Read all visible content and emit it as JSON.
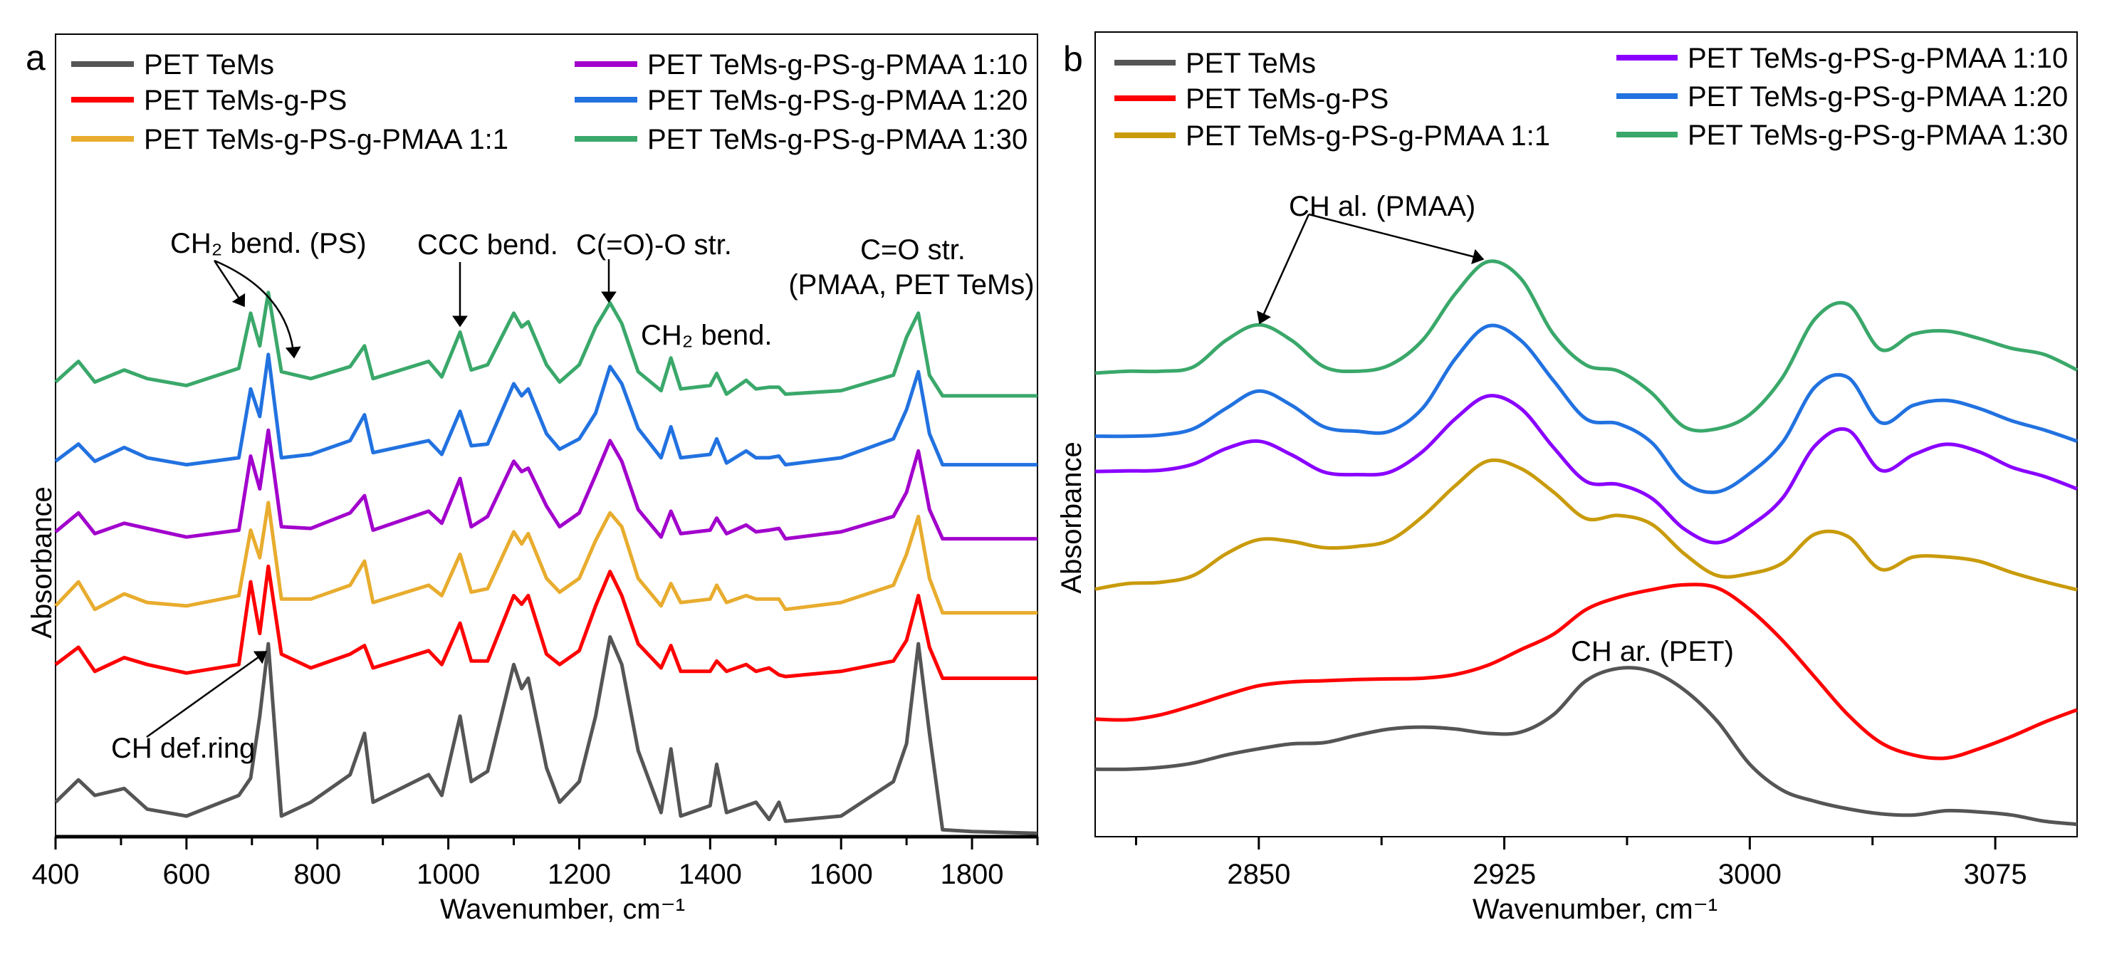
{
  "chart_data": [
    {
      "type": "line",
      "panel_label": "a",
      "xlabel": "Wavenumber, cm⁻¹",
      "ylabel": "Absorbance",
      "xlim": [
        400,
        1900
      ],
      "ylim": [
        0,
        23.3
      ],
      "xticks": [
        400,
        600,
        800,
        1000,
        1200,
        1400,
        1600,
        1800
      ],
      "minor_xticks": [
        500,
        700,
        900,
        1100,
        1300,
        1500,
        1700,
        1900
      ],
      "yticks": [],
      "grid": false,
      "legend": "top",
      "x": [
        400,
        435,
        460,
        505,
        540,
        600,
        680,
        698,
        712,
        725,
        745,
        790,
        850,
        872,
        885,
        970,
        990,
        1018,
        1035,
        1060,
        1100,
        1112,
        1122,
        1150,
        1170,
        1200,
        1225,
        1247,
        1265,
        1290,
        1325,
        1340,
        1355,
        1400,
        1410,
        1425,
        1455,
        1470,
        1490,
        1505,
        1515,
        1600,
        1680,
        1700,
        1718,
        1735,
        1755,
        1800,
        1900
      ],
      "series": [
        {
          "name": "PET TeMs",
          "color": "#555555",
          "values": [
            1.0,
            1.65,
            1.2,
            1.4,
            0.8,
            0.6,
            1.2,
            1.7,
            3.5,
            5.6,
            0.6,
            1.0,
            1.8,
            3.0,
            1.0,
            1.8,
            1.2,
            3.5,
            1.6,
            1.9,
            5.0,
            4.3,
            4.6,
            2.0,
            1.0,
            1.6,
            3.5,
            5.8,
            5.0,
            2.5,
            0.7,
            2.55,
            0.6,
            0.9,
            2.1,
            0.7,
            0.9,
            1.0,
            0.5,
            1.0,
            0.45,
            0.6,
            1.6,
            2.7,
            5.6,
            3.0,
            0.2,
            0.15,
            0.1
          ]
        },
        {
          "name": "PET TeMs-g-PS",
          "color": "#ff0000",
          "values": [
            5.0,
            5.5,
            4.8,
            5.2,
            5.0,
            4.75,
            5.0,
            7.4,
            5.9,
            7.85,
            5.3,
            4.9,
            5.3,
            5.55,
            4.9,
            5.4,
            5.0,
            6.2,
            5.1,
            5.1,
            7.0,
            6.75,
            7.0,
            5.3,
            5.0,
            5.4,
            6.7,
            7.7,
            7.0,
            5.6,
            4.9,
            5.55,
            4.8,
            4.8,
            5.1,
            4.8,
            5.0,
            4.8,
            4.9,
            4.7,
            4.65,
            4.8,
            5.1,
            5.7,
            7.0,
            5.5,
            4.6,
            4.6,
            4.6
          ]
        },
        {
          "name": "PET TeMs-g-PS-g-PMAA 1:1",
          "color": "#e8ac2e",
          "values": [
            6.7,
            7.4,
            6.6,
            7.05,
            6.8,
            6.7,
            7.0,
            8.9,
            8.1,
            9.7,
            6.9,
            6.9,
            7.3,
            8.0,
            6.8,
            7.3,
            7.0,
            8.2,
            7.1,
            7.2,
            8.85,
            8.5,
            8.8,
            7.5,
            7.1,
            7.5,
            8.6,
            9.4,
            9.0,
            7.5,
            6.7,
            7.35,
            6.8,
            6.9,
            7.3,
            6.8,
            7.0,
            6.9,
            6.9,
            6.9,
            6.6,
            6.8,
            7.3,
            8.2,
            9.3,
            7.5,
            6.5,
            6.5,
            6.5
          ]
        },
        {
          "name": "PET TeMs-g-PS-g-PMAA 1:10",
          "color": "#a200cc",
          "values": [
            8.85,
            9.4,
            8.8,
            9.1,
            8.95,
            8.7,
            8.9,
            11.05,
            10.1,
            11.8,
            9.0,
            8.95,
            9.4,
            9.9,
            8.9,
            9.45,
            9.1,
            10.4,
            9.0,
            9.3,
            10.9,
            10.6,
            10.7,
            9.6,
            9.0,
            9.4,
            10.5,
            11.5,
            10.9,
            9.5,
            8.7,
            9.45,
            8.8,
            8.9,
            9.25,
            8.8,
            9.05,
            8.85,
            8.9,
            8.95,
            8.65,
            8.85,
            9.3,
            10.0,
            11.2,
            9.5,
            8.65,
            8.65,
            8.65
          ]
        },
        {
          "name": "PET TeMs-g-PS-g-PMAA 1:20",
          "color": "#2272e0",
          "values": [
            10.9,
            11.4,
            10.9,
            11.3,
            11.0,
            10.8,
            11.0,
            13.0,
            12.2,
            14.0,
            11.0,
            11.1,
            11.5,
            12.25,
            11.15,
            11.5,
            11.1,
            12.35,
            11.35,
            11.4,
            13.15,
            12.8,
            13.0,
            11.7,
            11.25,
            11.55,
            12.3,
            13.65,
            13.15,
            11.85,
            11.0,
            11.9,
            11.0,
            11.1,
            11.55,
            10.85,
            11.2,
            11.0,
            11.0,
            11.05,
            10.8,
            11.0,
            11.55,
            12.4,
            13.5,
            11.7,
            10.8,
            10.8,
            10.8
          ]
        },
        {
          "name": "PET TeMs-g-PS-g-PMAA 1:30",
          "color": "#3aa86a",
          "values": [
            13.2,
            13.8,
            13.2,
            13.55,
            13.3,
            13.1,
            13.6,
            15.2,
            14.25,
            15.8,
            13.5,
            13.3,
            13.65,
            14.25,
            13.3,
            13.8,
            13.35,
            14.65,
            13.55,
            13.7,
            15.2,
            14.8,
            14.95,
            13.7,
            13.2,
            13.7,
            14.8,
            15.5,
            14.9,
            13.5,
            12.95,
            13.9,
            13.0,
            13.1,
            13.45,
            12.85,
            13.25,
            13.0,
            13.05,
            13.05,
            12.85,
            12.95,
            13.4,
            14.5,
            15.2,
            13.4,
            12.8,
            12.8,
            12.8
          ]
        }
      ],
      "annotations": [
        {
          "text": "CH₂ bend. (PS)"
        },
        {
          "text": "CCC bend."
        },
        {
          "text": "C(=O)-O str."
        },
        {
          "text": "CH₂ bend."
        },
        {
          "text": "C=O str."
        },
        {
          "text": "(PMAA, PET TeMs)"
        },
        {
          "text": "CH def.ring"
        }
      ]
    },
    {
      "type": "line",
      "panel_label": "b",
      "xlabel": "Wavenumber, cm⁻¹",
      "ylabel": "Absorbance",
      "xlim": [
        2800,
        3100
      ],
      "ylim": [
        0,
        13.0
      ],
      "xticks": [
        2850,
        2925,
        3000,
        3075
      ],
      "minor_xticks": [
        2812.5,
        2887.5,
        2962.5,
        3037.5
      ],
      "yticks": [],
      "grid": false,
      "legend": "top",
      "x": [
        2800,
        2810,
        2820,
        2830,
        2840,
        2850,
        2860,
        2870,
        2880,
        2890,
        2900,
        2910,
        2920,
        2930,
        2940,
        2950,
        2960,
        2970,
        2980,
        2990,
        3000,
        3010,
        3020,
        3030,
        3040,
        3050,
        3060,
        3070,
        3080,
        3090,
        3100
      ],
      "series": [
        {
          "name": "PET TeMs",
          "color": "#555555",
          "values": [
            1.09,
            1.09,
            1.12,
            1.19,
            1.32,
            1.42,
            1.5,
            1.52,
            1.64,
            1.74,
            1.77,
            1.74,
            1.67,
            1.69,
            1.97,
            2.52,
            2.72,
            2.67,
            2.37,
            1.87,
            1.17,
            0.75,
            0.57,
            0.45,
            0.37,
            0.35,
            0.42,
            0.4,
            0.35,
            0.25,
            0.2
          ]
        },
        {
          "name": "PET TeMs-g-PS",
          "color": "#ff0000",
          "values": [
            1.9,
            1.89,
            1.97,
            2.12,
            2.29,
            2.44,
            2.5,
            2.52,
            2.54,
            2.55,
            2.56,
            2.62,
            2.77,
            3.02,
            3.27,
            3.67,
            3.87,
            3.99,
            4.07,
            4.02,
            3.67,
            3.17,
            2.57,
            1.97,
            1.52,
            1.32,
            1.27,
            1.42,
            1.62,
            1.85,
            2.05
          ]
        },
        {
          "name": "PET TeMs-g-PS-g-PMAA 1:1",
          "color": "#c99b0c",
          "values": [
            4.0,
            4.09,
            4.11,
            4.22,
            4.57,
            4.8,
            4.77,
            4.67,
            4.69,
            4.79,
            5.17,
            5.67,
            6.07,
            5.95,
            5.57,
            5.14,
            5.19,
            5.05,
            4.57,
            4.22,
            4.25,
            4.42,
            4.89,
            4.85,
            4.32,
            4.52,
            4.52,
            4.45,
            4.27,
            4.12,
            3.99
          ]
        },
        {
          "name": "PET TeMs-g-PS-g-PMAA 1:10",
          "color": "#8a00ff",
          "values": [
            5.9,
            5.91,
            5.92,
            6.02,
            6.27,
            6.39,
            6.17,
            5.89,
            5.85,
            5.89,
            6.22,
            6.75,
            7.12,
            6.92,
            6.29,
            5.74,
            5.69,
            5.47,
            4.97,
            4.75,
            5.02,
            5.47,
            6.32,
            6.57,
            5.92,
            6.17,
            6.34,
            6.22,
            5.97,
            5.82,
            5.62
          ]
        },
        {
          "name": "PET TeMs-g-PS-g-PMAA 1:20",
          "color": "#2272e0",
          "values": [
            6.47,
            6.47,
            6.49,
            6.59,
            6.92,
            7.2,
            6.97,
            6.62,
            6.55,
            6.55,
            6.92,
            7.72,
            8.25,
            8.02,
            7.37,
            6.75,
            6.67,
            6.37,
            5.72,
            5.57,
            5.87,
            6.37,
            7.27,
            7.42,
            6.69,
            6.97,
            7.05,
            6.92,
            6.72,
            6.57,
            6.39
          ]
        },
        {
          "name": "PET TeMs-g-PS-g-PMAA 1:30",
          "color": "#3aa86a",
          "values": [
            7.49,
            7.52,
            7.52,
            7.59,
            8.02,
            8.27,
            8.02,
            7.59,
            7.52,
            7.62,
            8.02,
            8.77,
            9.29,
            9.02,
            8.12,
            7.62,
            7.52,
            7.17,
            6.62,
            6.59,
            6.82,
            7.42,
            8.37,
            8.6,
            7.87,
            8.12,
            8.17,
            8.05,
            7.89,
            7.79,
            7.54
          ]
        }
      ],
      "annotations": [
        {
          "text": "CH al. (PMAA)"
        },
        {
          "text": "CH ar. (PET)"
        }
      ]
    }
  ]
}
